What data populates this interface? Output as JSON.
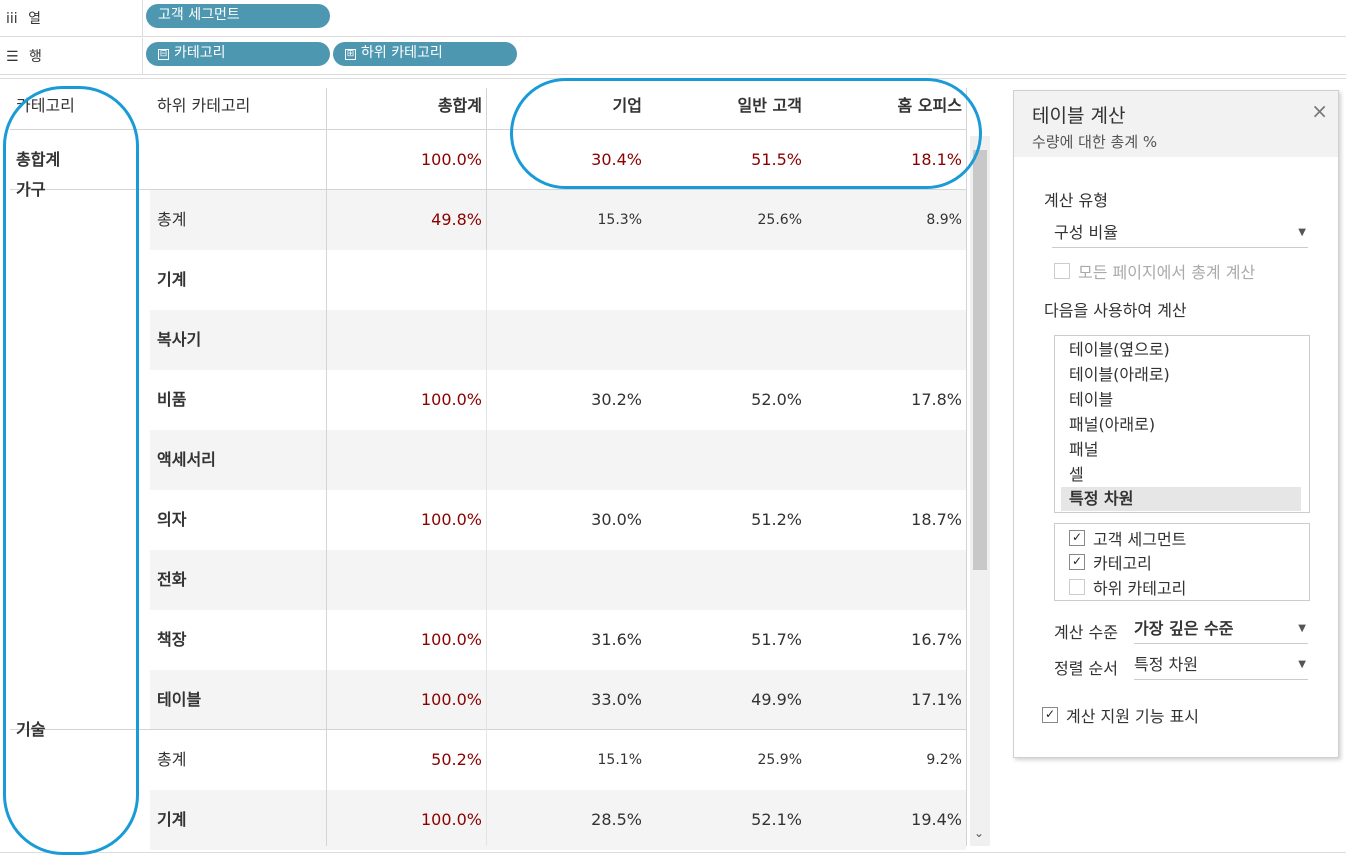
{
  "shelves": {
    "columns": {
      "icon": "iii",
      "label": "열",
      "pills": [
        {
          "text": "고객 세그먼트"
        }
      ]
    },
    "rows": {
      "icon": "☰",
      "label": "행",
      "pills": [
        {
          "prefix": "⊟",
          "text": "카테고리"
        },
        {
          "prefix": "⊞",
          "text": "하위 카테고리"
        }
      ]
    }
  },
  "table": {
    "headers": {
      "category": "카테고리",
      "subcategory": "하위 카테고리",
      "total": "총합계",
      "c1": "기업",
      "c2": "일반 고객",
      "c3": "홈 오피스"
    },
    "grand_total": {
      "label": "총합계",
      "total": "100.0%",
      "c1": "30.4%",
      "c2": "51.5%",
      "c3": "18.1%"
    },
    "rows": [
      {
        "category": "가구",
        "sub": "총계",
        "total": "49.8%",
        "c1": "15.3%",
        "c2": "25.6%",
        "c3": "8.9%",
        "subtotal": true
      },
      {
        "category": "",
        "sub": "기계",
        "total": "",
        "c1": "",
        "c2": "",
        "c3": ""
      },
      {
        "category": "",
        "sub": "복사기",
        "total": "",
        "c1": "",
        "c2": "",
        "c3": ""
      },
      {
        "category": "",
        "sub": "비품",
        "total": "100.0%",
        "c1": "30.2%",
        "c2": "52.0%",
        "c3": "17.8%"
      },
      {
        "category": "",
        "sub": "액세서리",
        "total": "",
        "c1": "",
        "c2": "",
        "c3": ""
      },
      {
        "category": "",
        "sub": "의자",
        "total": "100.0%",
        "c1": "30.0%",
        "c2": "51.2%",
        "c3": "18.7%"
      },
      {
        "category": "",
        "sub": "전화",
        "total": "",
        "c1": "",
        "c2": "",
        "c3": ""
      },
      {
        "category": "",
        "sub": "책장",
        "total": "100.0%",
        "c1": "31.6%",
        "c2": "51.7%",
        "c3": "16.7%"
      },
      {
        "category": "",
        "sub": "테이블",
        "total": "100.0%",
        "c1": "33.0%",
        "c2": "49.9%",
        "c3": "17.1%"
      },
      {
        "category": "기술",
        "sub": "총계",
        "total": "50.2%",
        "c1": "15.1%",
        "c2": "25.9%",
        "c3": "9.2%",
        "subtotal": true
      },
      {
        "category": "",
        "sub": "기계",
        "total": "100.0%",
        "c1": "28.5%",
        "c2": "52.1%",
        "c3": "19.4%"
      }
    ]
  },
  "panel": {
    "title": "테이블 계산",
    "subtitle": "수량에 대한 총계 %",
    "close_icon": "×",
    "calc_type_label": "계산 유형",
    "calc_type_value": "구성 비율",
    "all_pages_label": "모든 페이지에서 총계 계산",
    "compute_using_label": "다음을 사용하여 계산",
    "compute_options": [
      "테이블(옆으로)",
      "테이블(아래로)",
      "테이블",
      "패널(아래로)",
      "패널",
      "셀",
      "특정 차원"
    ],
    "selected_option": "특정 차원",
    "dimensions": [
      {
        "label": "고객 세그먼트",
        "checked": true
      },
      {
        "label": "카테고리",
        "checked": true
      },
      {
        "label": "하위 카테고리",
        "checked": false
      }
    ],
    "level_label": "계산 수준",
    "level_value": "가장 깊은 수준",
    "sort_label": "정렬 순서",
    "sort_value": "특정 차원",
    "show_assist_label": "계산 지원 기능 표시",
    "show_assist_checked": true
  },
  "colors": {
    "accent_oval": "#1a9ad6",
    "pill": "#4e97b0",
    "value_red": "#8b0000"
  }
}
